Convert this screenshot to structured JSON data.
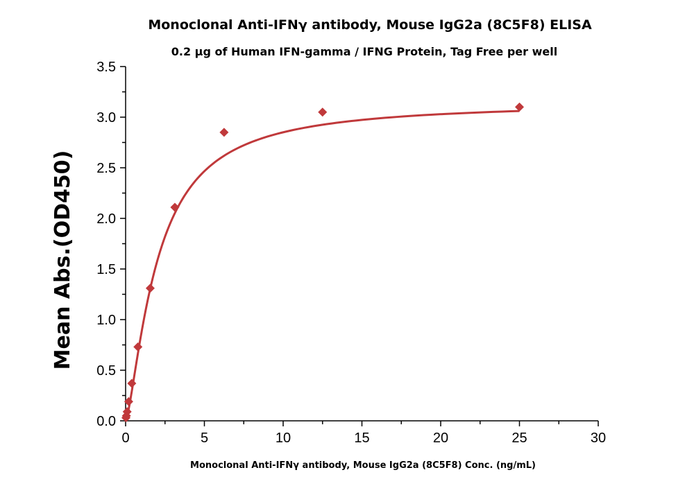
{
  "chart_data": {
    "type": "scatter",
    "title": "Monoclonal Anti-IFNγ antibody, Mouse IgG2a (8C5F8) ELISA",
    "subtitle": "0.2 μg of Human IFN-gamma / IFNG Protein, Tag Free per well",
    "xlabel": "Monoclonal Anti-IFNγ antibody, Mouse IgG2a (8C5F8) Conc. (ng/mL)",
    "ylabel": "Mean Abs.(OD450)",
    "xlim": [
      0,
      30
    ],
    "ylim": [
      0,
      3.5
    ],
    "xticks": [
      0,
      5,
      10,
      15,
      20,
      25,
      30
    ],
    "yticks": [
      0.0,
      0.5,
      1.0,
      1.5,
      2.0,
      2.5,
      3.0,
      3.5
    ],
    "ytick_labels": [
      "0.0",
      "0.5",
      "1.0",
      "1.5",
      "2.0",
      "2.5",
      "3.0",
      "3.5"
    ],
    "grid": false,
    "color": "#c0393b",
    "series": [
      {
        "marker": "diamond",
        "x": [
          0.024,
          0.049,
          0.098,
          0.195,
          0.391,
          0.781,
          1.5625,
          3.125,
          6.25,
          12.5,
          25
        ],
        "y": [
          0.03,
          0.05,
          0.09,
          0.19,
          0.37,
          0.73,
          1.31,
          2.11,
          2.85,
          3.05,
          3.1
        ]
      }
    ],
    "fit_curve": {
      "type": "4PL",
      "bottom": 0.0,
      "top": 3.15,
      "ec50": 2.0,
      "hill": 1.4
    }
  }
}
